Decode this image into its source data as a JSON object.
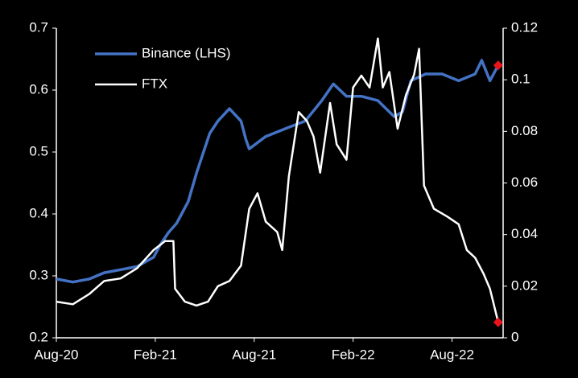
{
  "chart_data": {
    "type": "line",
    "xlim": [
      0,
      27.1
    ],
    "xticks": [
      {
        "value": 0,
        "label": "Aug-20"
      },
      {
        "value": 6,
        "label": "Feb-21"
      },
      {
        "value": 12,
        "label": "Aug-21"
      },
      {
        "value": 18,
        "label": "Feb-22"
      },
      {
        "value": 24,
        "label": "Aug-22"
      }
    ],
    "ylim": [
      0.2,
      0.7
    ],
    "yticks": [
      0.2,
      0.3,
      0.4,
      0.5,
      0.6,
      0.7
    ],
    "y2lim": [
      0,
      0.12
    ],
    "y2ticks": [
      0,
      0.02,
      0.04,
      0.06,
      0.08,
      0.1,
      0.12
    ],
    "end_marker_color": "#e8141a",
    "series": [
      {
        "name": "Binance (LHS)",
        "color": "#4472c4",
        "axis": "y",
        "x": [
          0,
          1,
          2,
          2.9,
          3.9,
          4.9,
          5.9,
          6.3,
          6.8,
          7.3,
          8,
          8.5,
          9.3,
          9.8,
          10.5,
          11.2,
          11.5,
          11.7,
          12.7,
          14.1,
          15.1,
          16.1,
          16.8,
          17.6,
          18.5,
          19.5,
          20.5,
          21,
          21.5,
          22.4,
          23.4,
          24.4,
          25.4,
          25.8,
          26.3,
          26.8
        ],
        "values": [
          0.295,
          0.29,
          0.295,
          0.305,
          0.31,
          0.315,
          0.33,
          0.35,
          0.37,
          0.385,
          0.42,
          0.466,
          0.53,
          0.55,
          0.57,
          0.55,
          0.52,
          0.505,
          0.525,
          0.54,
          0.55,
          0.583,
          0.61,
          0.59,
          0.59,
          0.583,
          0.557,
          0.565,
          0.615,
          0.626,
          0.626,
          0.615,
          0.626,
          0.648,
          0.615,
          0.64
        ]
      },
      {
        "name": "FTX",
        "color": "#ffffff",
        "axis": "y2",
        "x": [
          0,
          1,
          2,
          2.9,
          3.9,
          4.9,
          5.9,
          6.6,
          7.1,
          7.2,
          7.8,
          8.5,
          9.2,
          9.8,
          10.5,
          11.2,
          11.7,
          12.2,
          12.7,
          13.4,
          13.7,
          14.1,
          14.7,
          15.2,
          15.6,
          16,
          16.6,
          17,
          17.6,
          18,
          18.5,
          19,
          19.5,
          19.8,
          20.2,
          20.7,
          21.2,
          21.7,
          22,
          22.3,
          22.9,
          23.7,
          24.4,
          24.9,
          25.4,
          25.9,
          26.3,
          26.8
        ],
        "values": [
          0.014,
          0.013,
          0.017,
          0.022,
          0.023,
          0.027,
          0.034,
          0.0375,
          0.0375,
          0.019,
          0.014,
          0.0125,
          0.014,
          0.02,
          0.022,
          0.028,
          0.05,
          0.056,
          0.045,
          0.041,
          0.034,
          0.0625,
          0.0875,
          0.084,
          0.078,
          0.064,
          0.091,
          0.075,
          0.069,
          0.097,
          0.1016,
          0.097,
          0.116,
          0.097,
          0.103,
          0.081,
          0.094,
          0.102,
          0.112,
          0.059,
          0.05,
          0.047,
          0.044,
          0.034,
          0.031,
          0.025,
          0.019,
          0.006
        ]
      }
    ]
  }
}
